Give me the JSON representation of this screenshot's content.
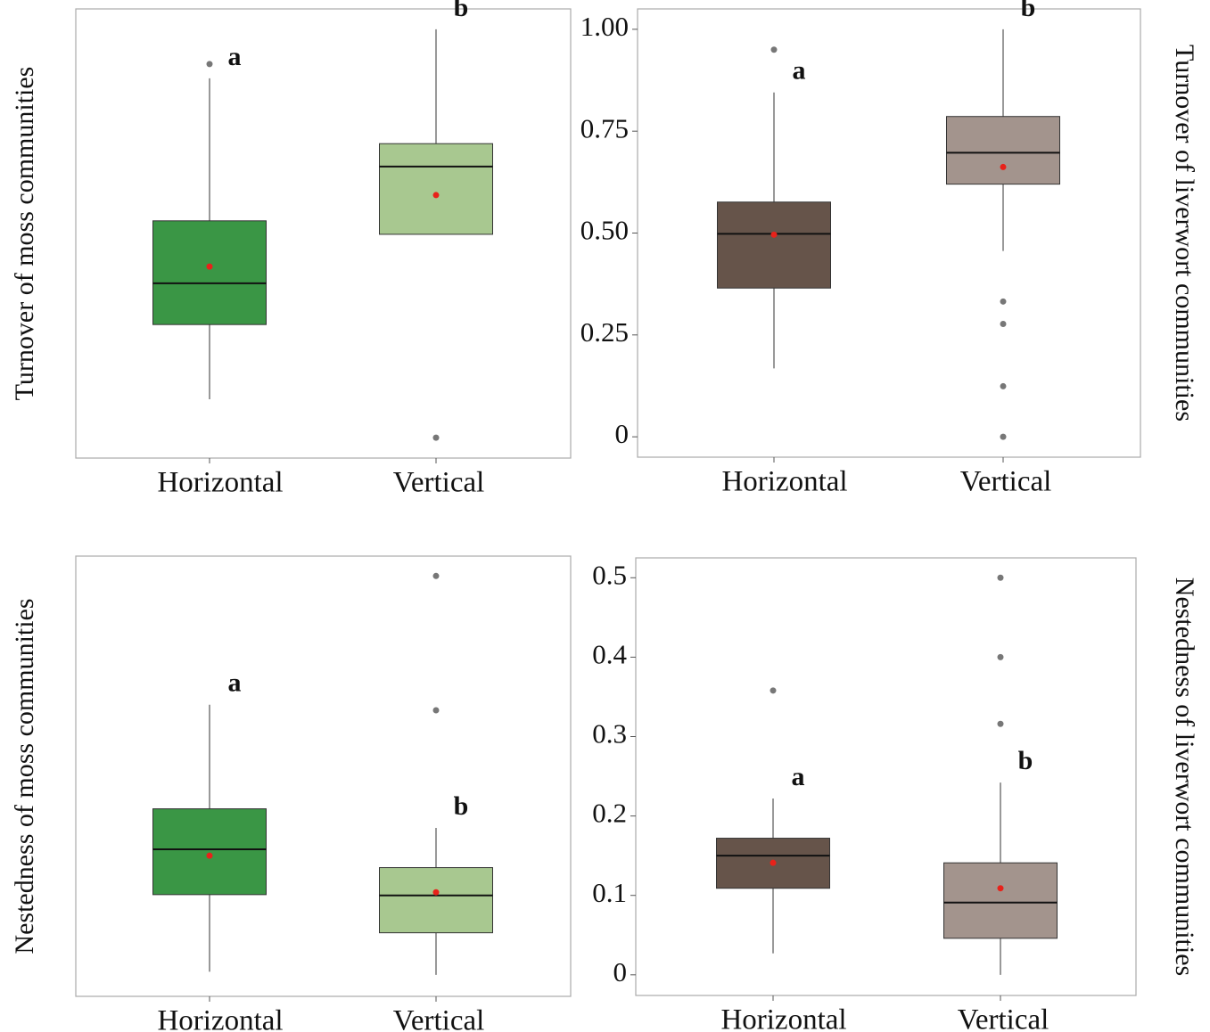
{
  "chart_data": [
    {
      "type": "box",
      "ylabel": "Turnover of moss communities",
      "ylabel_side": "left",
      "categories": [
        "Horizontal",
        "Vertical"
      ],
      "colors": [
        "#3a9645",
        "#a8c890"
      ],
      "ylim": [
        -0.05,
        1.05
      ],
      "boxes": [
        {
          "whislo": 0.094,
          "q1": 0.277,
          "med": 0.378,
          "q3": 0.531,
          "whishi": 0.88,
          "mean": 0.419,
          "outliers": [
            0.915
          ],
          "letter": "a"
        },
        {
          "whislo": 0.498,
          "q1": 0.498,
          "med": 0.664,
          "q3": 0.72,
          "whishi": 1.0,
          "mean": 0.594,
          "outliers": [
            0
          ],
          "letter": "b"
        }
      ]
    },
    {
      "type": "box",
      "ylabel": "Turnover of liverwort communities",
      "ylabel_side": "right",
      "categories": [
        "Horizontal",
        "Vertical"
      ],
      "colors": [
        "#66544a",
        "#a3948d"
      ],
      "ylim": [
        -0.05,
        1.05
      ],
      "yticks": [
        0,
        {
          "value": 0.25,
          "label": "0.25"
        },
        {
          "value": 0.5,
          "label": "0.50"
        },
        {
          "value": 0.75,
          "label": "0.75"
        },
        {
          "value": 1,
          "label": "1.00"
        }
      ],
      "boxes": [
        {
          "whislo": 0.168,
          "q1": 0.365,
          "med": 0.498,
          "q3": 0.576,
          "whishi": 0.845,
          "mean": 0.496,
          "outliers": [
            0.95
          ],
          "letter": "a"
        },
        {
          "whislo": 0.456,
          "q1": 0.62,
          "med": 0.697,
          "q3": 0.786,
          "whishi": 1.0,
          "mean": 0.662,
          "outliers": [
            0.332,
            0.277,
            0.124,
            0
          ],
          "letter": "b"
        }
      ]
    },
    {
      "type": "box",
      "ylabel": "Nestedness of moss communities",
      "ylabel_side": "left",
      "categories": [
        "Horizontal",
        "Vertical"
      ],
      "colors": [
        "#3a9645",
        "#a8c890"
      ],
      "ylim": [
        -0.027,
        0.527
      ],
      "boxes": [
        {
          "whislo": 0.004,
          "q1": 0.101,
          "med": 0.158,
          "q3": 0.209,
          "whishi": 0.34,
          "mean": 0.15,
          "outliers": [],
          "letter": "a"
        },
        {
          "whislo": 0,
          "q1": 0.053,
          "med": 0.1,
          "q3": 0.135,
          "whishi": 0.185,
          "mean": 0.104,
          "outliers": [
            0.502,
            0.333
          ],
          "letter": "b"
        }
      ]
    },
    {
      "type": "box",
      "ylabel": "Nestedness of liverwort communities",
      "ylabel_side": "right",
      "categories": [
        "Horizontal",
        "Vertical"
      ],
      "colors": [
        "#66544a",
        "#a3948d"
      ],
      "ylim": [
        -0.026,
        0.525
      ],
      "yticks": [
        0,
        0.1,
        0.2,
        0.3,
        0.4,
        0.5
      ],
      "boxes": [
        {
          "whislo": 0.027,
          "q1": 0.109,
          "med": 0.15,
          "q3": 0.172,
          "whishi": 0.222,
          "mean": 0.141,
          "outliers": [
            0.358
          ],
          "letter": "a"
        },
        {
          "whislo": 0,
          "q1": 0.046,
          "med": 0.091,
          "q3": 0.141,
          "whishi": 0.242,
          "mean": 0.109,
          "outliers": [
            0.5,
            0.4,
            0.316
          ],
          "letter": "b"
        }
      ]
    }
  ]
}
